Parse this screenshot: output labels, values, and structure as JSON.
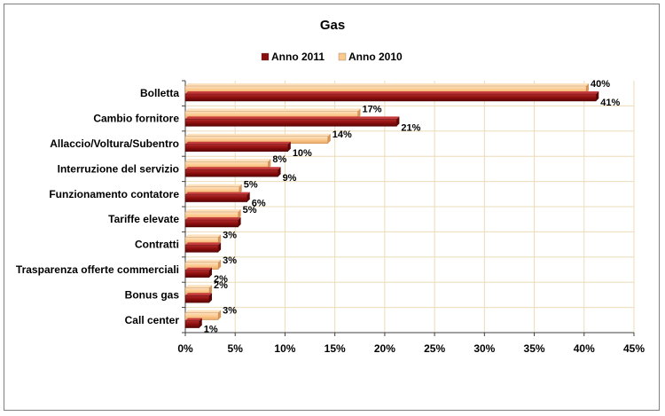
{
  "chart_data": {
    "type": "bar",
    "orientation": "horizontal",
    "title": "Gas",
    "xlabel": "",
    "ylabel": "",
    "xlim": [
      0,
      45
    ],
    "tick_step": 5,
    "tick_suffix": "%",
    "grid": true,
    "legend": "top",
    "categories": [
      "Bolletta",
      "Cambio fornitore",
      "Allaccio/Voltura/Subentro",
      "Interruzione del servizio",
      "Funzionamento contatore",
      "Tariffe elevate",
      "Contratti",
      "Trasparenza offerte commerciali",
      "Bonus gas",
      "Call center"
    ],
    "series": [
      {
        "name": "Anno 2011",
        "color": "#8b0e0e",
        "values": [
          41.2,
          21.2,
          10.3,
          9.3,
          6.2,
          5.3,
          3.3,
          2.4,
          2.4,
          1.4
        ],
        "labels": [
          "41%",
          "21%",
          "10%",
          "9%",
          "6%",
          "",
          "",
          "2%",
          "",
          "1%"
        ]
      },
      {
        "name": "Anno 2010",
        "color": "#fcc88c",
        "values": [
          40.2,
          17.3,
          14.3,
          8.3,
          5.4,
          5.3,
          3.3,
          3.3,
          2.4,
          3.3
        ],
        "labels": [
          "40%",
          "17%",
          "14%",
          "8%",
          "5%",
          "5%",
          "3%",
          "3%",
          "2%",
          "3%"
        ]
      }
    ]
  }
}
